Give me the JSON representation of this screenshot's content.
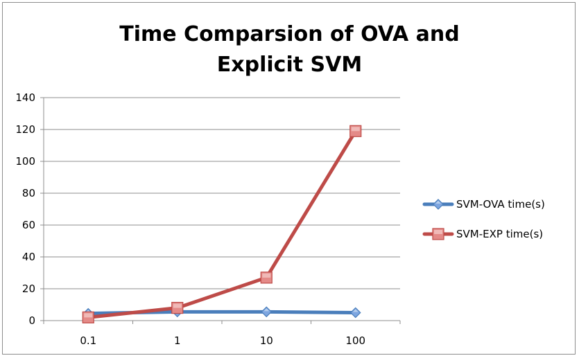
{
  "chart_data": {
    "type": "line",
    "title": "Time Comparsion of OVA and Explicit SVM",
    "xlabel": "",
    "ylabel": "",
    "categories": [
      "0.1",
      "1",
      "10",
      "100"
    ],
    "ylim": [
      0,
      140
    ],
    "yticks": [
      "0",
      "20",
      "40",
      "60",
      "80",
      "100",
      "120",
      "140"
    ],
    "grid": true,
    "legend_position": "right",
    "series": [
      {
        "name": "SVM-OVA time(s)",
        "values": [
          4.5,
          5.5,
          5.5,
          5.0
        ],
        "color": "#4a7ebb",
        "marker": "diamond"
      },
      {
        "name": "SVM-EXP time(s)",
        "values": [
          2.0,
          8.0,
          27.0,
          119.0
        ],
        "color": "#be4b48",
        "marker": "square"
      }
    ]
  }
}
